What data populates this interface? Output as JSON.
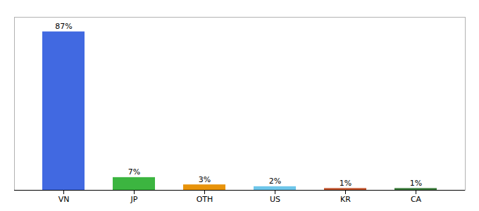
{
  "chart_data": {
    "type": "bar",
    "categories": [
      "VN",
      "JP",
      "OTH",
      "US",
      "KR",
      "CA"
    ],
    "values": [
      87,
      7,
      3,
      2,
      1,
      1
    ],
    "value_labels": [
      "87%",
      "7%",
      "3%",
      "2%",
      "1%",
      "1%"
    ],
    "data_labels": true,
    "colors": [
      "#4169e1",
      "#3cb540",
      "#e8930a",
      "#6ec6ea",
      "#c0522a",
      "#3a7a3a"
    ],
    "ylim": [
      0,
      95
    ],
    "tick_labels": "x",
    "grid": false
  }
}
